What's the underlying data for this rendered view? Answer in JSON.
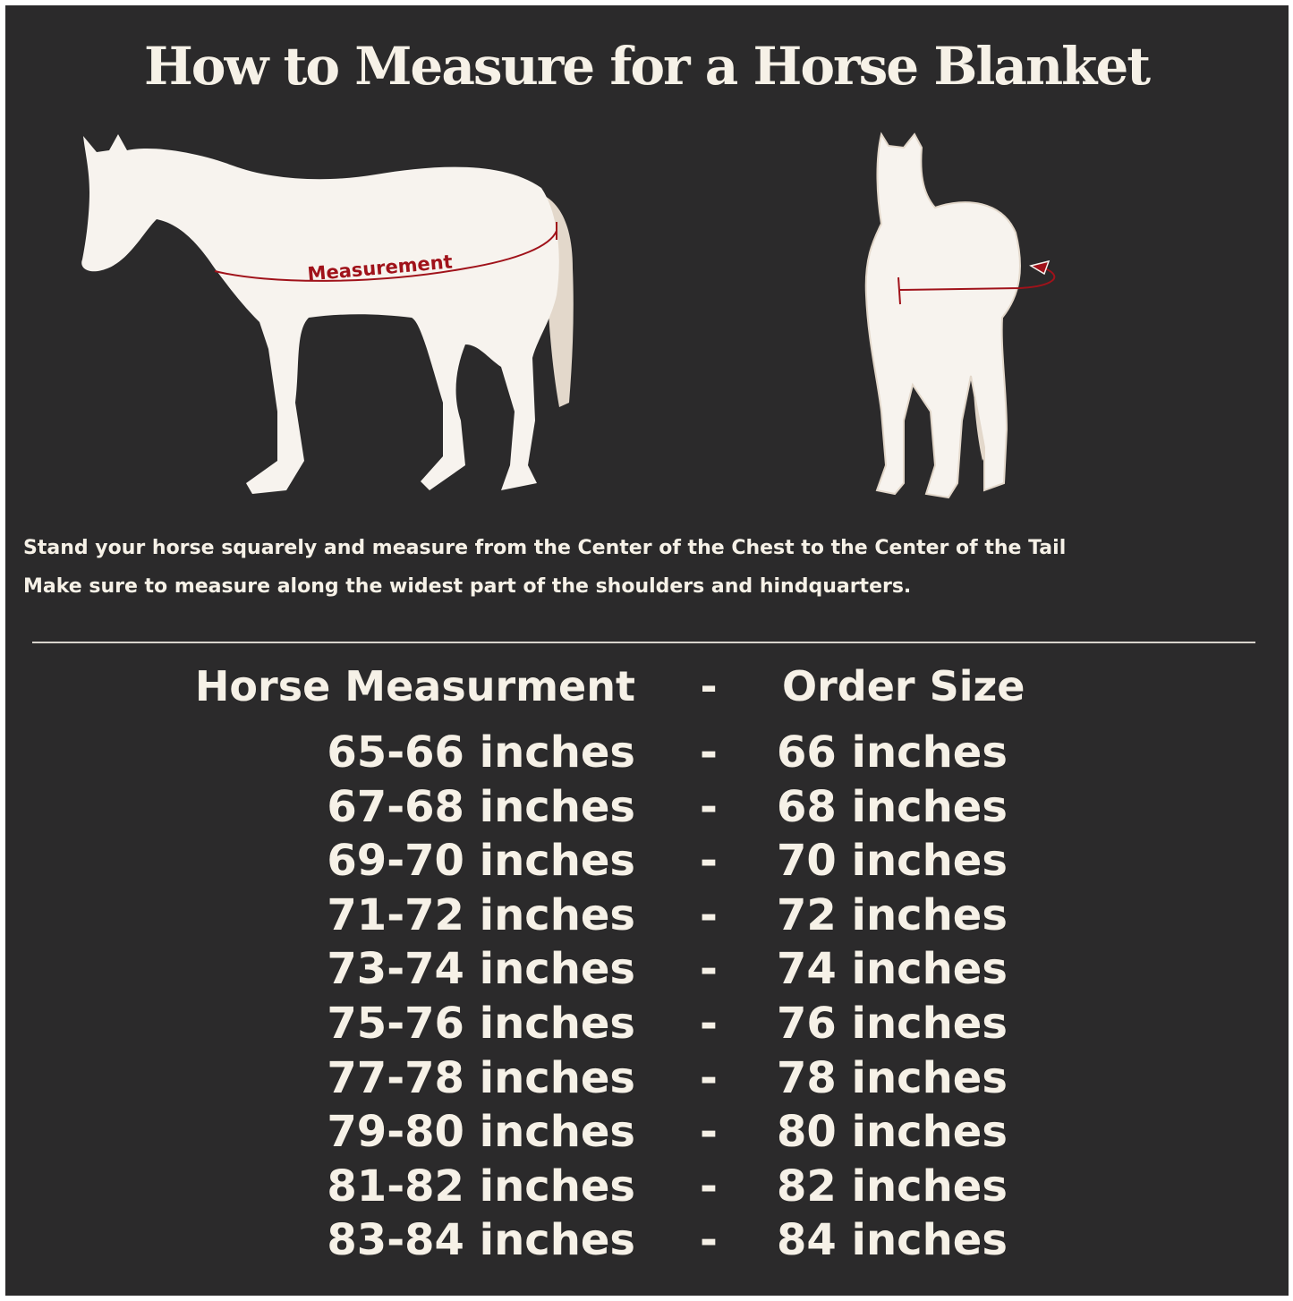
{
  "title": "How to Measure for a Horse Blanket",
  "diagram": {
    "side_label": "Measurement",
    "accent_color": "#a0121a",
    "horse_color": "#f7f3ee",
    "background_color": "#2b2a2b"
  },
  "instructions": [
    "Stand your horse squarely and measure from the Center of the Chest to the Center of the Tail",
    "Make sure to measure along the widest part of the shoulders and hindquarters."
  ],
  "table": {
    "headers": {
      "measurement": "Horse Measurment",
      "separator": "-",
      "size": "Order Size"
    },
    "rows": [
      {
        "measurement": "65-66 inches",
        "separator": "-",
        "size": "66 inches"
      },
      {
        "measurement": "67-68 inches",
        "separator": "-",
        "size": "68 inches"
      },
      {
        "measurement": "69-70 inches",
        "separator": "-",
        "size": "70 inches"
      },
      {
        "measurement": "71-72 inches",
        "separator": "-",
        "size": "72 inches"
      },
      {
        "measurement": "73-74 inches",
        "separator": "-",
        "size": "74 inches"
      },
      {
        "measurement": "75-76 inches",
        "separator": "-",
        "size": "76 inches"
      },
      {
        "measurement": "77-78 inches",
        "separator": "-",
        "size": "78 inches"
      },
      {
        "measurement": "79-80 inches",
        "separator": "-",
        "size": "80 inches"
      },
      {
        "measurement": "81-82 inches",
        "separator": "-",
        "size": "82 inches"
      },
      {
        "measurement": "83-84 inches",
        "separator": "-",
        "size": "84 inches"
      }
    ]
  }
}
